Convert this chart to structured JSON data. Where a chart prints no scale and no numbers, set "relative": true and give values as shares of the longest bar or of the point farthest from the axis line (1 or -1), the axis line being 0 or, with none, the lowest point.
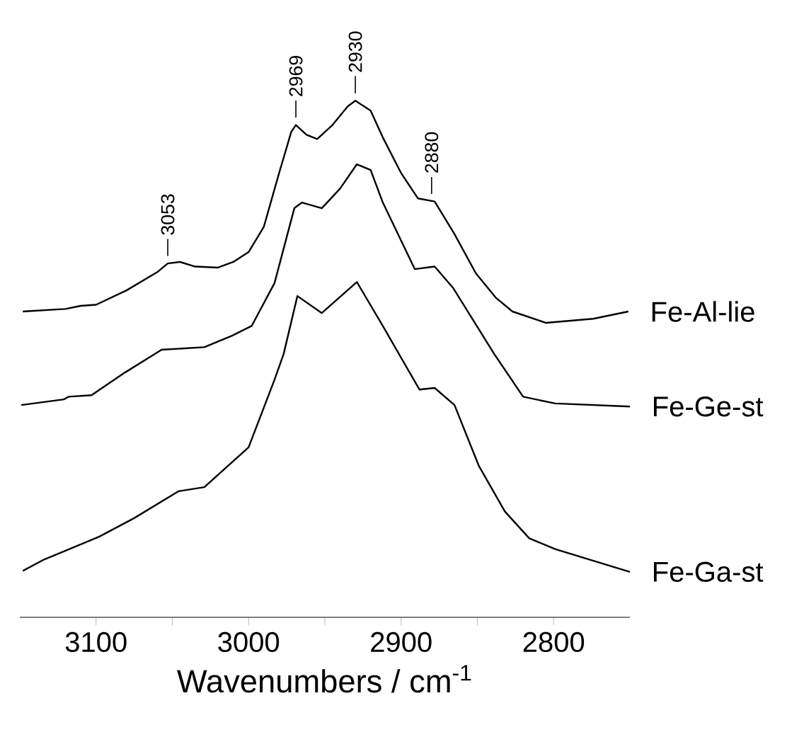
{
  "chart_data": {
    "type": "line",
    "relative": true,
    "xlabel": "Wavenumbers / cm$^{-1}$",
    "xlim": [
      3150,
      2750
    ],
    "xticks": [
      3100,
      {
        "value": 3050,
        "label": null
      },
      3000,
      {
        "value": 2950,
        "label": null
      },
      2900,
      {
        "value": 2850,
        "label": null
      },
      2800
    ],
    "marker": "none",
    "line_style": "solid",
    "annotations": [
      {
        "text": "3053",
        "x": 3053,
        "y": 0.685
      },
      {
        "text": "2969",
        "x": 2969,
        "y": 0.953
      },
      {
        "text": "2930",
        "x": 2930,
        "y": 1.0
      },
      {
        "text": "2880",
        "x": 2880,
        "y": 0.805
      }
    ],
    "series": [
      {
        "name": "Fe-Al-lie",
        "color": "#000000",
        "x": [
          3148,
          3120,
          3110,
          3100,
          3080,
          3060,
          3053,
          3045,
          3035,
          3020,
          3010,
          3000,
          2990,
          2980,
          2972,
          2969,
          2962,
          2955,
          2945,
          2935,
          2930,
          2920,
          2912,
          2900,
          2889,
          2878,
          2865,
          2851,
          2838,
          2827,
          2805,
          2774,
          2751
        ],
        "values": [
          0.592,
          0.597,
          0.603,
          0.605,
          0.633,
          0.668,
          0.685,
          0.688,
          0.679,
          0.677,
          0.688,
          0.707,
          0.756,
          0.86,
          0.94,
          0.953,
          0.934,
          0.926,
          0.953,
          0.989,
          1.0,
          0.981,
          0.929,
          0.86,
          0.811,
          0.805,
          0.742,
          0.666,
          0.619,
          0.592,
          0.57,
          0.578,
          0.592
        ]
      },
      {
        "name": "Fe-Ge-st",
        "color": "#000000",
        "x": [
          3149,
          3121,
          3118,
          3103,
          3081,
          3057,
          3029,
          3011,
          2998,
          2983,
          2970,
          2965,
          2952,
          2940,
          2929,
          2920,
          2912,
          2891,
          2878,
          2866,
          2839,
          2820,
          2799,
          2750
        ],
        "values": [
          0.411,
          0.422,
          0.427,
          0.43,
          0.474,
          0.518,
          0.523,
          0.545,
          0.564,
          0.647,
          0.792,
          0.803,
          0.792,
          0.83,
          0.877,
          0.866,
          0.803,
          0.674,
          0.679,
          0.638,
          0.51,
          0.427,
          0.414,
          0.408
        ]
      },
      {
        "name": "Fe-Ga-st",
        "color": "#000000",
        "x": [
          3148,
          3134,
          3098,
          3075,
          3046,
          3029,
          3000,
          2983,
          2977,
          2968,
          2952,
          2929,
          2912,
          2888,
          2878,
          2865,
          2849,
          2832,
          2816,
          2799,
          2750
        ],
        "values": [
          0.09,
          0.112,
          0.156,
          0.192,
          0.244,
          0.252,
          0.329,
          0.46,
          0.51,
          0.622,
          0.589,
          0.649,
          0.564,
          0.441,
          0.444,
          0.411,
          0.293,
          0.205,
          0.153,
          0.132,
          0.088
        ]
      }
    ]
  }
}
